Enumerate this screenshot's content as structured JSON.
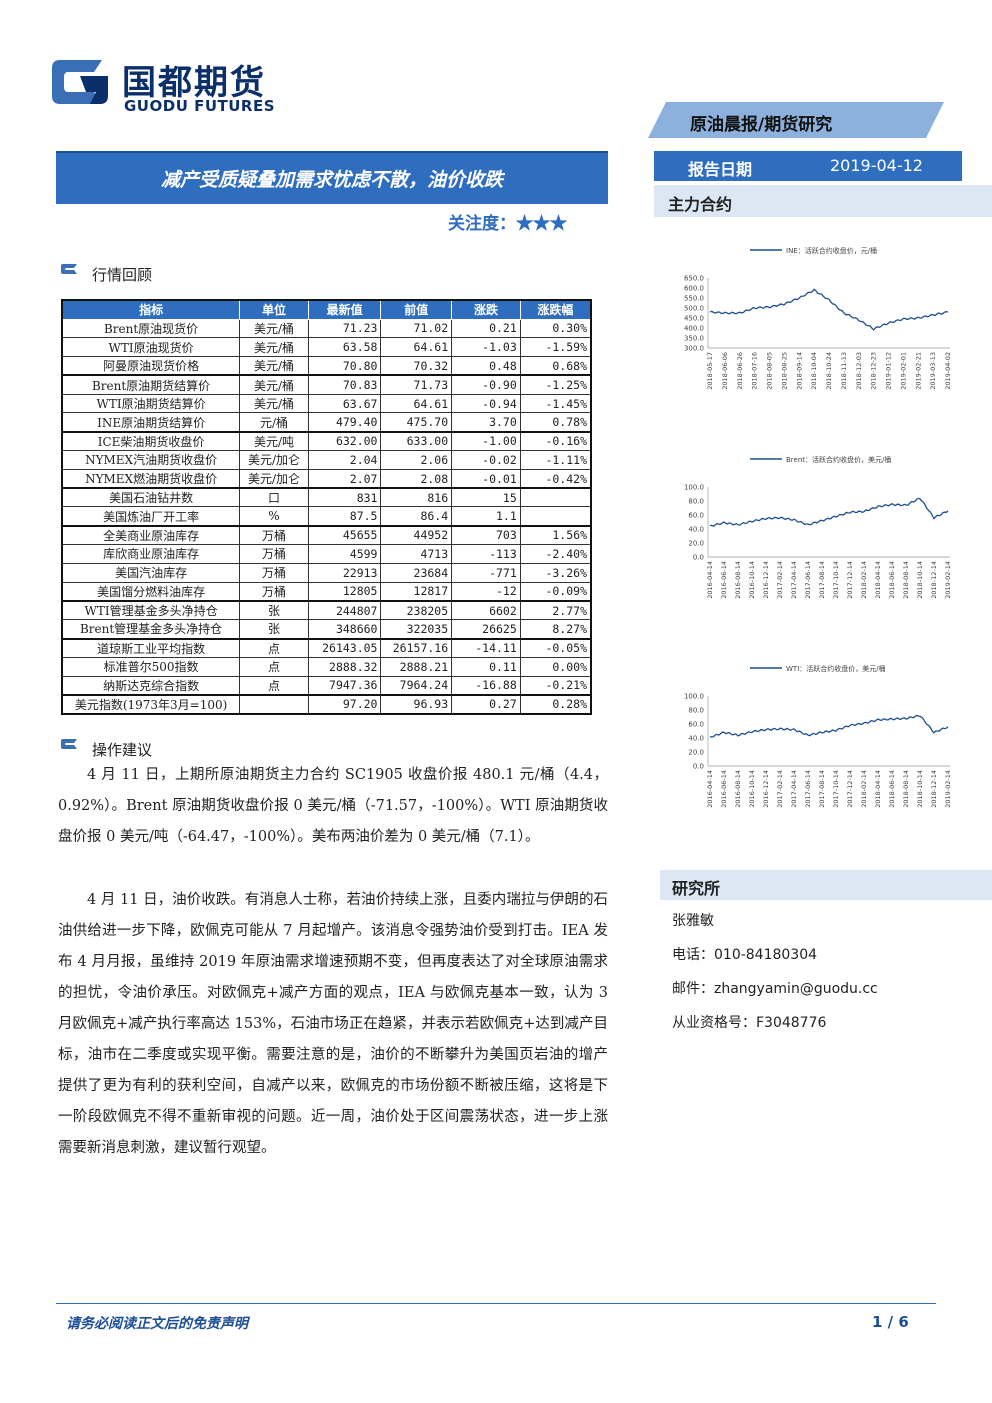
{
  "header": {
    "logo_cn": "国都期货",
    "logo_en": "GUODU FUTURES",
    "series": "原油晨报/期货研究"
  },
  "title": "减产受质疑叠加需求忧虑不散，油价收跌",
  "attention_label": "关注度：",
  "attention_stars": "★★★",
  "report_date": {
    "label": "报告日期",
    "value": "2019-04-12"
  },
  "main_contract_label": "主力合约",
  "market_review_label": "行情回顾",
  "table": {
    "headers": [
      "指标",
      "单位",
      "最新值",
      "前值",
      "涨跌",
      "涨跌幅"
    ],
    "rows": [
      [
        "Brent原油现货价",
        "美元/桶",
        "71.23",
        "71.02",
        "0.21",
        "0.30%"
      ],
      [
        "WTI原油现货价",
        "美元/桶",
        "63.58",
        "64.61",
        "-1.03",
        "-1.59%"
      ],
      [
        "阿曼原油现货价格",
        "美元/桶",
        "70.80",
        "70.32",
        "0.48",
        "0.68%"
      ],
      [
        "Brent原油期货结算价",
        "美元/桶",
        "70.83",
        "71.73",
        "-0.90",
        "-1.25%"
      ],
      [
        "WTI原油期货结算价",
        "美元/桶",
        "63.67",
        "64.61",
        "-0.94",
        "-1.45%"
      ],
      [
        "INE原油期货结算价",
        "元/桶",
        "479.40",
        "475.70",
        "3.70",
        "0.78%"
      ],
      [
        "ICE柴油期货收盘价",
        "美元/吨",
        "632.00",
        "633.00",
        "-1.00",
        "-0.16%"
      ],
      [
        "NYMEX汽油期货收盘价",
        "美元/加仑",
        "2.04",
        "2.06",
        "-0.02",
        "-1.11%"
      ],
      [
        "NYMEX燃油期货收盘价",
        "美元/加仑",
        "2.07",
        "2.08",
        "-0.01",
        "-0.42%"
      ],
      [
        "美国石油钻井数",
        "口",
        "831",
        "816",
        "15",
        ""
      ],
      [
        "美国炼油厂开工率",
        "%",
        "87.5",
        "86.4",
        "1.1",
        ""
      ],
      [
        "全美商业原油库存",
        "万桶",
        "45655",
        "44952",
        "703",
        "1.56%"
      ],
      [
        "库欣商业原油库存",
        "万桶",
        "4599",
        "4713",
        "-113",
        "-2.40%"
      ],
      [
        "美国汽油库存",
        "万桶",
        "22913",
        "23684",
        "-771",
        "-3.26%"
      ],
      [
        "美国馏分燃料油库存",
        "万桶",
        "12805",
        "12817",
        "-12",
        "-0.09%"
      ],
      [
        "WTI管理基金多头净持仓",
        "张",
        "244807",
        "238205",
        "6602",
        "2.77%"
      ],
      [
        "Brent管理基金多头净持仓",
        "张",
        "348660",
        "322035",
        "26625",
        "8.27%"
      ],
      [
        "道琼斯工业平均指数",
        "点",
        "26143.05",
        "26157.16",
        "-14.11",
        "-0.05%"
      ],
      [
        "标准普尔500指数",
        "点",
        "2888.32",
        "2888.21",
        "0.11",
        "0.00%"
      ],
      [
        "纳斯达克综合指数",
        "点",
        "7947.36",
        "7964.24",
        "-16.88",
        "-0.21%"
      ],
      [
        "美元指数(1973年3月=100)",
        "",
        "97.20",
        "96.93",
        "0.27",
        "0.28%"
      ]
    ]
  },
  "operation_label": "操作建议",
  "paragraphs": [
    "4 月 11 日，上期所原油期货主力合约 SC1905 收盘价报 480.1 元/桶（4.4，0.92%）。Brent 原油期货收盘价报 0 美元/桶（-71.57，-100%）。WTI 原油期货收盘价报 0 美元/吨（-64.47，-100%）。美布两油价差为 0 美元/桶（7.1）。",
    "4 月 11 日，油价收跌。有消息人士称，若油价持续上涨，且委内瑞拉与伊朗的石油供给进一步下降，欧佩克可能从 7 月起增产。该消息令强势油价受到打击。IEA 发布 4 月月报，虽维持 2019 年原油需求增速预期不变，但再度表达了对全球原油需求的担忧，令油价承压。对欧佩克+减产方面的观点，IEA 与欧佩克基本一致，认为 3 月欧佩克+减产执行率高达 153%，石油市场正在趋紧，并表示若欧佩克+达到减产目标，油市在二季度或实现平衡。需要注意的是，油价的不断攀升为美国页岩油的增产提供了更为有利的获利空间，自减产以来，欧佩克的市场份额不断被压缩，这将是下一阶段欧佩克不得不重新审视的问题。近一周，油价处于区间震荡状态，进一步上涨需要新消息刺激，建议暂行观望。"
  ],
  "chart_data": [
    {
      "type": "line",
      "legend": "INE：活跃合约收盘价，元/桶",
      "ylim": [
        300,
        650
      ],
      "yticks": [
        "650.0",
        "600.0",
        "550.0",
        "500.0",
        "450.0",
        "400.0",
        "350.0",
        "300.0"
      ],
      "x": [
        "2018-05-17",
        "2018-06-06",
        "2018-06-26",
        "2018-07-16",
        "2018-08-05",
        "2018-08-25",
        "2018-09-14",
        "2018-10-04",
        "2018-10-24",
        "2018-11-13",
        "2018-12-03",
        "2018-12-23",
        "2019-01-12",
        "2019-02-01",
        "2019-02-21",
        "2019-03-13",
        "2019-04-02"
      ],
      "values": [
        480,
        475,
        475,
        500,
        505,
        520,
        550,
        590,
        540,
        475,
        440,
        395,
        425,
        445,
        450,
        465,
        480
      ]
    },
    {
      "type": "line",
      "legend": "Brent：活跃合约收盘价，美元/桶",
      "ylim": [
        0,
        100
      ],
      "yticks": [
        "100.0",
        "80.0",
        "60.0",
        "40.0",
        "20.0",
        "0.0"
      ],
      "x": [
        "2016-04-14",
        "2016-06-14",
        "2016-08-14",
        "2016-10-14",
        "2016-12-14",
        "2017-02-14",
        "2017-04-14",
        "2017-06-14",
        "2017-08-14",
        "2017-10-14",
        "2017-12-14",
        "2018-02-14",
        "2018-04-14",
        "2018-06-14",
        "2018-08-14",
        "2018-10-14",
        "2018-12-14",
        "2019-02-14"
      ],
      "values": [
        44,
        49,
        46,
        51,
        55,
        56,
        53,
        46,
        52,
        58,
        64,
        65,
        72,
        75,
        74,
        84,
        56,
        66
      ]
    },
    {
      "type": "line",
      "legend": "WTI：活跃合约收盘价，美元/桶",
      "ylim": [
        0,
        100
      ],
      "yticks": [
        "100.0",
        "80.0",
        "60.0",
        "40.0",
        "20.0",
        "0.0"
      ],
      "x": [
        "2016-04-14",
        "2016-06-14",
        "2016-08-14",
        "2016-10-14",
        "2016-12-14",
        "2017-02-14",
        "2017-04-14",
        "2017-06-14",
        "2017-08-14",
        "2017-10-14",
        "2017-12-14",
        "2018-02-14",
        "2018-04-14",
        "2018-06-14",
        "2018-08-14",
        "2018-10-14",
        "2018-12-14",
        "2019-02-14"
      ],
      "values": [
        41,
        48,
        44,
        49,
        52,
        53,
        52,
        44,
        48,
        51,
        58,
        61,
        66,
        67,
        68,
        72,
        48,
        56
      ]
    }
  ],
  "research": {
    "label": "研究所",
    "name": "张雅敏",
    "phone": "电话：010-84180304",
    "email": "邮件：zhangyamin@guodu.cc",
    "license": "从业资格号：F3048776"
  },
  "footer": {
    "disclaimer": "请务必阅读正文后的免责声明",
    "page": "1 / 6"
  },
  "colors": {
    "brand_blue": "#2f6ebf",
    "light_blue": "#8db1dd",
    "line": "#1f4e8c"
  }
}
